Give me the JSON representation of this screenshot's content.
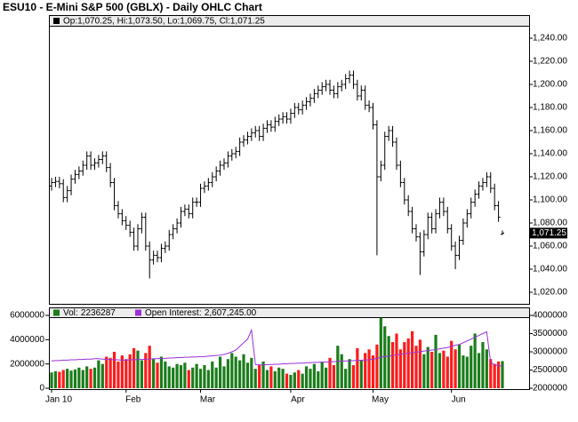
{
  "chart_data": [
    {
      "type": "ohlc",
      "title": "ESU10 - E-Mini S&P 500 (GBLX) - Daily OHLC Chart",
      "legend_text": "Op:1,070.25, Hi:1,073.50, Lo:1,069.75, Cl:1,071.25",
      "last_value_label": "1,071.25",
      "color": "#000000",
      "categories": [
        "Jan 10",
        null,
        null,
        null,
        null,
        null,
        null,
        null,
        null,
        null,
        null,
        null,
        null,
        null,
        null,
        null,
        null,
        null,
        null,
        "Feb",
        null,
        null,
        null,
        null,
        null,
        null,
        null,
        null,
        null,
        null,
        null,
        null,
        null,
        null,
        null,
        null,
        null,
        null,
        "Mar",
        null,
        null,
        null,
        null,
        null,
        null,
        null,
        null,
        null,
        null,
        null,
        null,
        null,
        null,
        null,
        null,
        null,
        null,
        null,
        null,
        null,
        null,
        "Apr",
        null,
        null,
        null,
        null,
        null,
        null,
        null,
        null,
        null,
        null,
        null,
        null,
        null,
        null,
        null,
        null,
        null,
        null,
        null,
        null,
        "May",
        null,
        null,
        null,
        null,
        null,
        null,
        null,
        null,
        null,
        null,
        null,
        null,
        null,
        null,
        null,
        null,
        null,
        null,
        null,
        "Jun",
        null,
        null,
        null,
        null,
        null,
        null,
        null,
        null,
        null,
        null,
        null,
        null,
        null
      ],
      "open": [
        1112,
        1115,
        1116,
        1114,
        1102,
        1108,
        1118,
        1122,
        1125,
        1130,
        1138,
        1130,
        1132,
        1135,
        1138,
        1128,
        1115,
        1095,
        1088,
        1082,
        1078,
        1072,
        1060,
        1075,
        1085,
        1060,
        1048,
        1052,
        1050,
        1058,
        1060,
        1070,
        1075,
        1080,
        1090,
        1092,
        1088,
        1098,
        1098,
        1110,
        1112,
        1115,
        1120,
        1125,
        1130,
        1132,
        1138,
        1140,
        1142,
        1150,
        1152,
        1155,
        1158,
        1160,
        1155,
        1162,
        1165,
        1163,
        1168,
        1170,
        1172,
        1170,
        1175,
        1180,
        1178,
        1182,
        1185,
        1188,
        1192,
        1195,
        1198,
        1200,
        1195,
        1192,
        1198,
        1200,
        1205,
        1208,
        1200,
        1190,
        1195,
        1182,
        1180,
        1165,
        1120,
        1130,
        1155,
        1160,
        1150,
        1130,
        1115,
        1100,
        1090,
        1075,
        1068,
        1055,
        1070,
        1085,
        1075,
        1088,
        1098,
        1090,
        1075,
        1060,
        1052,
        1065,
        1080,
        1088,
        1098,
        1105,
        1112,
        1115,
        1120,
        1110,
        1095,
        1070.25
      ],
      "high": [
        1119,
        1120,
        1120,
        1118,
        1112,
        1122,
        1126,
        1129,
        1134,
        1142,
        1142,
        1136,
        1139,
        1142,
        1142,
        1132,
        1119,
        1099,
        1092,
        1086,
        1082,
        1076,
        1079,
        1089,
        1089,
        1064,
        1056,
        1056,
        1062,
        1064,
        1074,
        1079,
        1084,
        1094,
        1096,
        1096,
        1102,
        1102,
        1114,
        1116,
        1119,
        1124,
        1129,
        1134,
        1136,
        1142,
        1144,
        1146,
        1154,
        1156,
        1159,
        1162,
        1164,
        1164,
        1166,
        1169,
        1169,
        1172,
        1174,
        1176,
        1176,
        1179,
        1184,
        1184,
        1186,
        1189,
        1192,
        1196,
        1199,
        1202,
        1204,
        1204,
        1199,
        1202,
        1204,
        1209,
        1212,
        1212,
        1204,
        1199,
        1199,
        1186,
        1184,
        1169,
        1134,
        1159,
        1164,
        1164,
        1154,
        1134,
        1119,
        1104,
        1094,
        1079,
        1072,
        1074,
        1089,
        1089,
        1092,
        1102,
        1102,
        1094,
        1079,
        1064,
        1069,
        1084,
        1092,
        1102,
        1109,
        1116,
        1119,
        1124,
        1124,
        1114,
        1099,
        1073.5
      ],
      "low": [
        1108,
        1111,
        1110,
        1098,
        1098,
        1104,
        1114,
        1118,
        1121,
        1126,
        1126,
        1126,
        1128,
        1131,
        1124,
        1111,
        1091,
        1084,
        1078,
        1074,
        1068,
        1056,
        1056,
        1071,
        1056,
        1032,
        1044,
        1046,
        1046,
        1054,
        1056,
        1066,
        1071,
        1076,
        1086,
        1084,
        1084,
        1094,
        1094,
        1106,
        1108,
        1111,
        1116,
        1121,
        1126,
        1128,
        1134,
        1136,
        1138,
        1146,
        1148,
        1151,
        1154,
        1151,
        1151,
        1158,
        1159,
        1159,
        1164,
        1166,
        1166,
        1166,
        1171,
        1174,
        1174,
        1178,
        1181,
        1184,
        1188,
        1191,
        1194,
        1191,
        1188,
        1188,
        1194,
        1196,
        1201,
        1196,
        1186,
        1186,
        1178,
        1176,
        1161,
        1052,
        1116,
        1126,
        1151,
        1146,
        1126,
        1111,
        1096,
        1086,
        1071,
        1064,
        1035,
        1051,
        1066,
        1071,
        1071,
        1084,
        1086,
        1071,
        1056,
        1040,
        1048,
        1061,
        1076,
        1084,
        1094,
        1101,
        1108,
        1111,
        1106,
        1091,
        1081,
        1069.75
      ],
      "close": [
        1115,
        1116,
        1114,
        1102,
        1108,
        1118,
        1122,
        1125,
        1130,
        1138,
        1130,
        1132,
        1135,
        1138,
        1128,
        1115,
        1095,
        1088,
        1082,
        1078,
        1072,
        1060,
        1075,
        1085,
        1060,
        1048,
        1052,
        1050,
        1058,
        1060,
        1070,
        1075,
        1080,
        1090,
        1092,
        1088,
        1098,
        1098,
        1110,
        1112,
        1115,
        1120,
        1125,
        1130,
        1132,
        1138,
        1140,
        1142,
        1150,
        1152,
        1155,
        1158,
        1160,
        1155,
        1162,
        1165,
        1163,
        1168,
        1170,
        1172,
        1170,
        1175,
        1180,
        1178,
        1182,
        1185,
        1188,
        1192,
        1195,
        1198,
        1200,
        1195,
        1192,
        1198,
        1200,
        1205,
        1208,
        1200,
        1190,
        1195,
        1182,
        1180,
        1165,
        1120,
        1130,
        1155,
        1160,
        1150,
        1130,
        1115,
        1100,
        1090,
        1075,
        1068,
        1055,
        1070,
        1085,
        1075,
        1088,
        1098,
        1090,
        1075,
        1060,
        1052,
        1065,
        1080,
        1088,
        1098,
        1105,
        1112,
        1115,
        1120,
        1110,
        1095,
        1085,
        1071.25
      ],
      "ylim": [
        1010,
        1250
      ],
      "yticks": [
        {
          "value": 1020,
          "label": "1,020.00"
        },
        {
          "value": 1040,
          "label": "1,040.00"
        },
        {
          "value": 1060,
          "label": "1,060.00"
        },
        {
          "value": 1080,
          "label": "1,080.00"
        },
        {
          "value": 1100,
          "label": "1,100.00"
        },
        {
          "value": 1120,
          "label": "1,120.00"
        },
        {
          "value": 1140,
          "label": "1,140.00"
        },
        {
          "value": 1160,
          "label": "1,160.00"
        },
        {
          "value": 1180,
          "label": "1,180.00"
        },
        {
          "value": 1200,
          "label": "1,200.00"
        },
        {
          "value": 1220,
          "label": "1,220.00"
        },
        {
          "value": 1240,
          "label": "1,240.00"
        }
      ]
    },
    {
      "type": "volume",
      "up_color": "#1b7d1b",
      "down_color": "#ff1a1a",
      "series": [
        {
          "name": "Vol",
          "color": "#1b7d1b",
          "values": [
            1300000,
            1400000,
            1350000,
            1500000,
            1600000,
            1450000,
            1550000,
            1700000,
            1500000,
            1800000,
            1600000,
            1700000,
            2300000,
            2000000,
            2600000,
            2500000,
            3000000,
            2200000,
            2700000,
            2400000,
            2800000,
            3300000,
            3100000,
            2300000,
            2900000,
            3500000,
            2400000,
            2100000,
            2600000,
            2200000,
            1800000,
            1700000,
            2000000,
            1900000,
            2100000,
            1500000,
            1700000,
            2000000,
            1600000,
            1900000,
            1500000,
            2200000,
            1700000,
            2600000,
            1800000,
            2400000,
            2900000,
            2600000,
            2300000,
            2800000,
            2100000,
            2500000,
            1600000,
            1900000,
            2200000,
            1500000,
            1800000,
            1400000,
            1700000,
            1600000,
            1200000,
            1100000,
            1300000,
            1500000,
            1200000,
            1800000,
            1600000,
            2000000,
            1400000,
            2200000,
            1700000,
            2500000,
            1900000,
            3500000,
            2800000,
            1600000,
            2400000,
            1900000,
            3300000,
            2300000,
            2900000,
            3200000,
            2700000,
            3600000,
            5800000,
            5100000,
            4300000,
            3800000,
            4500000,
            3200000,
            3800000,
            4100000,
            4700000,
            3500000,
            4000000,
            2800000,
            3400000,
            3000000,
            4400000,
            2900000,
            3100000,
            2600000,
            3900000,
            3200000,
            3600000,
            2700000,
            2600000,
            3500000,
            4500000,
            2900000,
            3800000,
            3200000,
            2400000,
            2000000,
            2200000,
            2236287
          ]
        },
        {
          "name": "Open Interest",
          "color": "#9b30d9",
          "axis": "y2",
          "last_value_label": "2,607,245.00",
          "values": [
            2750000,
            2760000,
            2760000,
            2770000,
            2770000,
            2780000,
            2780000,
            2790000,
            2790000,
            2800000,
            2800000,
            2810000,
            2810000,
            2800000,
            2790000,
            2790000,
            2780000,
            2780000,
            2770000,
            2770000,
            2780000,
            2780000,
            2790000,
            2790000,
            2800000,
            2800000,
            2810000,
            2810000,
            2820000,
            2820000,
            2830000,
            2830000,
            2840000,
            2840000,
            2850000,
            2850000,
            2860000,
            2860000,
            2870000,
            2870000,
            2880000,
            2890000,
            2900000,
            2910000,
            2930000,
            2960000,
            3000000,
            3050000,
            3150000,
            3250000,
            3350000,
            3600000,
            2650000,
            2640000,
            2640000,
            2650000,
            2650000,
            2660000,
            2660000,
            2670000,
            2670000,
            2680000,
            2680000,
            2690000,
            2690000,
            2700000,
            2700000,
            2710000,
            2710000,
            2720000,
            2720000,
            2730000,
            2730000,
            2740000,
            2740000,
            2750000,
            2750000,
            2760000,
            2760000,
            2770000,
            2770000,
            2780000,
            2800000,
            2820000,
            2850000,
            2870000,
            2880000,
            2900000,
            2920000,
            2930000,
            2950000,
            2960000,
            2980000,
            2990000,
            3000000,
            3020000,
            3030000,
            3050000,
            3060000,
            3080000,
            3100000,
            3120000,
            3150000,
            3180000,
            3200000,
            3250000,
            3300000,
            3350000,
            3400000,
            3450000,
            3500000,
            3550000,
            2700000,
            2650000,
            2620000,
            2607245
          ]
        }
      ],
      "ylim": [
        0,
        6000000
      ],
      "yticks": [
        0,
        2000000,
        4000000,
        6000000
      ],
      "y2lim": [
        2000000,
        4000000
      ],
      "y2ticks": [
        2000000,
        2500000,
        3000000,
        3500000,
        4000000
      ]
    }
  ]
}
